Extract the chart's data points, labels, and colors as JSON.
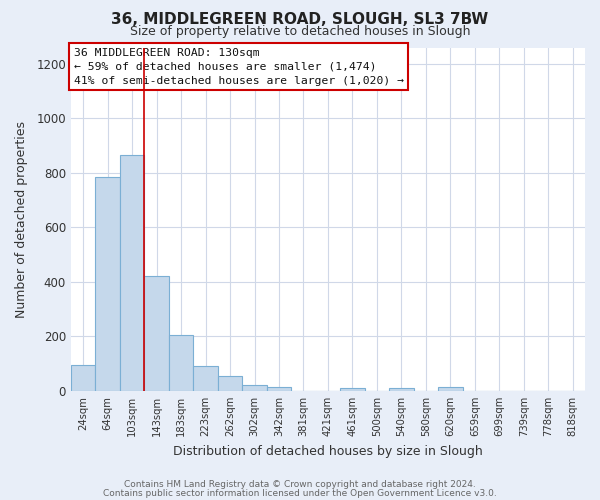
{
  "title": "36, MIDDLEGREEN ROAD, SLOUGH, SL3 7BW",
  "subtitle": "Size of property relative to detached houses in Slough",
  "xlabel": "Distribution of detached houses by size in Slough",
  "ylabel": "Number of detached properties",
  "bar_labels": [
    "24sqm",
    "64sqm",
    "103sqm",
    "143sqm",
    "183sqm",
    "223sqm",
    "262sqm",
    "302sqm",
    "342sqm",
    "381sqm",
    "421sqm",
    "461sqm",
    "500sqm",
    "540sqm",
    "580sqm",
    "620sqm",
    "659sqm",
    "699sqm",
    "739sqm",
    "778sqm",
    "818sqm"
  ],
  "bar_values": [
    95,
    785,
    865,
    420,
    205,
    90,
    55,
    22,
    13,
    0,
    0,
    10,
    0,
    12,
    0,
    13,
    0,
    0,
    0,
    0,
    0
  ],
  "bar_color": "#c5d8eb",
  "bar_edgecolor": "#7bafd4",
  "bar_linewidth": 0.8,
  "vline_x": 2.5,
  "vline_color": "#cc0000",
  "vline_linewidth": 1.2,
  "annotation_line1": "36 MIDDLEGREEN ROAD: 130sqm",
  "annotation_line2": "← 59% of detached houses are smaller (1,474)",
  "annotation_line3": "41% of semi-detached houses are larger (1,020) →",
  "annotation_box_edgecolor": "#cc0000",
  "annotation_box_facecolor": "#ffffff",
  "ylim": [
    0,
    1260
  ],
  "yticks": [
    0,
    200,
    400,
    600,
    800,
    1000,
    1200
  ],
  "plot_bgcolor": "#ffffff",
  "fig_bgcolor": "#e8eef8",
  "grid_color": "#d0d8e8",
  "title_color": "#222222",
  "footer_line1": "Contains HM Land Registry data © Crown copyright and database right 2024.",
  "footer_line2": "Contains public sector information licensed under the Open Government Licence v3.0."
}
